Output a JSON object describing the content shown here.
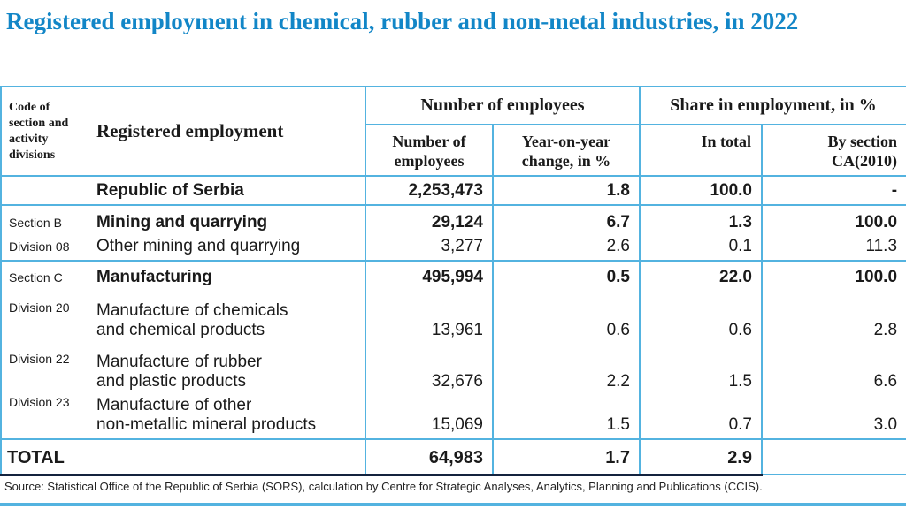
{
  "title": "Registered employment in chemical, rubber and non-metal industries, in 2022",
  "header": {
    "code_col_lines": [
      "Code of",
      "section and",
      "activity",
      "divisions"
    ],
    "name_col": "Registered employment",
    "groups": [
      {
        "label": "Number of employees"
      },
      {
        "label": "Share in employment, in %"
      }
    ],
    "subheaders": [
      [
        "Number of",
        "employees"
      ],
      [
        "Year-on-year",
        "change, in %"
      ],
      [
        "In total"
      ],
      [
        "By section",
        "CA(2010)"
      ]
    ]
  },
  "rows": [
    {
      "code_lines": [],
      "name_lines": [
        "Republic of Serbia"
      ],
      "employees": "2,253,473",
      "yoy": "1.8",
      "in_total": "100.0",
      "by_section": "-",
      "level": "country"
    },
    {
      "code_lines": [
        "Section B"
      ],
      "name_lines": [
        "Mining and quarrying"
      ],
      "employees": "29,124",
      "yoy": "6.7",
      "in_total": "1.3",
      "by_section": "100.0",
      "level": "section"
    },
    {
      "code_lines": [
        "Division 08"
      ],
      "name_lines": [
        "Other mining and quarrying"
      ],
      "employees": "3,277",
      "yoy": "2.6",
      "in_total": "0.1",
      "by_section": "11.3",
      "level": "division"
    },
    {
      "code_lines": [
        "Section C"
      ],
      "name_lines": [
        "Manufacturing"
      ],
      "employees": "495,994",
      "yoy": "0.5",
      "in_total": "22.0",
      "by_section": "100.0",
      "level": "section"
    },
    {
      "code_lines": [
        "Division 20"
      ],
      "name_lines": [
        "Manufacture of chemicals",
        "and chemical products"
      ],
      "employees": "13,961",
      "yoy": "0.6",
      "in_total": "0.6",
      "by_section": "2.8",
      "level": "division"
    },
    {
      "code_lines": [
        "Division 22"
      ],
      "name_lines": [
        "Manufacture of rubber",
        "and plastic products"
      ],
      "employees": "32,676",
      "yoy": "2.2",
      "in_total": "1.5",
      "by_section": "6.6",
      "level": "division"
    },
    {
      "code_lines": [
        "Division 23"
      ],
      "name_lines": [
        "Manufacture of other",
        "non-metallic mineral products"
      ],
      "employees": "15,069",
      "yoy": "1.5",
      "in_total": "0.7",
      "by_section": "3.0",
      "level": "division"
    }
  ],
  "total_row": {
    "label": "TOTAL",
    "employees": "64,983",
    "yoy": "1.7",
    "in_total": "2.9",
    "by_section": ""
  },
  "source": "Source: Statistical Office of the Republic of Serbia (SORS), calculation by Centre for Strategic Analyses, Analytics, Planning and Publications (CCIS).",
  "colors": {
    "title_blue": "#1286C7",
    "border_blue": "#53B3E0",
    "dark_rule": "#14233E",
    "text": "#1A1A1A"
  },
  "chart_data": {
    "type": "table",
    "title": "Registered employment in chemical, rubber and non-metal industries, in 2022",
    "columns": [
      "Code of section and activity divisions",
      "Registered employment",
      "Number of employees",
      "Year-on-year change, in %",
      "Share in employment in % - In total",
      "Share in employment in % - By section CA(2010)"
    ],
    "rows": [
      [
        "",
        "Republic of Serbia",
        2253473,
        1.8,
        100.0,
        null
      ],
      [
        "Section B",
        "Mining and quarrying",
        29124,
        6.7,
        1.3,
        100.0
      ],
      [
        "Division 08",
        "Other mining and quarrying",
        3277,
        2.6,
        0.1,
        11.3
      ],
      [
        "Section C",
        "Manufacturing",
        495994,
        0.5,
        22.0,
        100.0
      ],
      [
        "Division 20",
        "Manufacture of chemicals and chemical products",
        13961,
        0.6,
        0.6,
        2.8
      ],
      [
        "Division 22",
        "Manufacture of rubber and plastic products",
        32676,
        2.2,
        1.5,
        6.6
      ],
      [
        "Division 23",
        "Manufacture of other non-metallic mineral products",
        15069,
        1.5,
        0.7,
        3.0
      ],
      [
        "",
        "TOTAL",
        64983,
        1.7,
        2.9,
        null
      ]
    ],
    "source": "Source: Statistical Office of the Republic of Serbia (SORS), calculation by Centre for Strategic Analyses, Analytics, Planning and Publications (CCIS)."
  }
}
